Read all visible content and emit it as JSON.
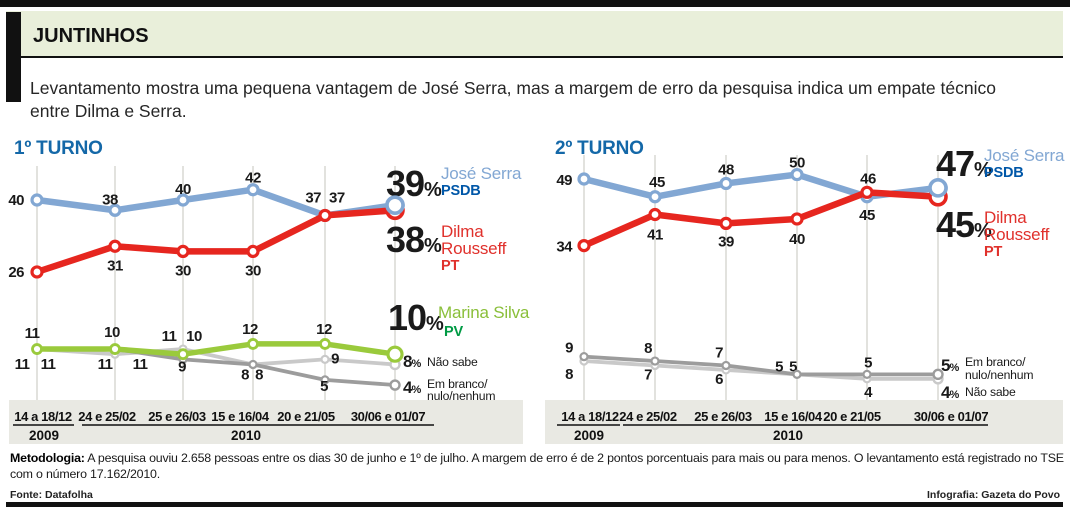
{
  "header": {
    "title": "JUNTINHOS",
    "subtitle": "Levantamento mostra uma pequena vantagem de José Serra, mas a margem de erro da pesquisa indica um empate técnico entre Dilma e Serra."
  },
  "footer": {
    "methodology_label": "Metodologia:",
    "methodology_text": "A pesquisa ouviu 2.658 pessoas entre os dias 30 de junho e 1º de julho. A margem de erro é de 2 pontos porcentuais para mais ou para menos. O levantamento está registrado no TSE com o número 17.162/2010.",
    "source": "Fonte: Datafolha",
    "credit": "Infografia: Gazeta do Povo"
  },
  "colors": {
    "header_bg": "#e9efda",
    "axis_band": "#e9e9e3",
    "title_blue": "#1468a8",
    "serra_line": "#82a7d3",
    "psdb_blue": "#0057a8",
    "dilma_line": "#e6261f",
    "dilma_text": "#e0312c",
    "marina_line": "#9aca3c",
    "marina_text": "#8abf3a",
    "pv_green": "#009a44",
    "gray_light": "#c9c9c9",
    "gray_dark": "#9c9c9c",
    "grid": "#d8d8d3",
    "label_dark": "#1a1a1a"
  },
  "chart_data": [
    {
      "type": "line",
      "title": "1º TURNO",
      "categories": [
        "14 a 18/12",
        "24 e 25/02",
        "25 e 26/03",
        "15 e 16/04",
        "20 e 21/05",
        "30/06 e 01/07"
      ],
      "years": [
        {
          "label": "2009",
          "cols": [
            0,
            0
          ]
        },
        {
          "label": "2010",
          "cols": [
            1,
            5
          ]
        }
      ],
      "ylim": [
        0,
        55
      ],
      "grid": "vertical",
      "legend_position": "right",
      "series": [
        {
          "name": "José Serra",
          "party": "PSDB",
          "values": [
            40,
            38,
            40,
            42,
            37,
            39
          ],
          "final": "39%"
        },
        {
          "name": "Dilma Rousseff",
          "party": "PT",
          "values": [
            26,
            31,
            30,
            30,
            37,
            38
          ],
          "final": "38%"
        },
        {
          "name": "Marina Silva",
          "party": "PV",
          "values": [
            11,
            11,
            10,
            12,
            12,
            10
          ],
          "final": "10%"
        },
        {
          "name": "Não sabe",
          "values": [
            11,
            10,
            11,
            8,
            9,
            8
          ],
          "final": "8%"
        },
        {
          "name": "Em branco/nulo/nenhum",
          "values": [
            11,
            11,
            9,
            8,
            5,
            4
          ],
          "final": "4%"
        }
      ]
    },
    {
      "type": "line",
      "title": "2º TURNO",
      "categories": [
        "14 a 18/12",
        "24 e 25/02",
        "25 e 26/03",
        "15 e 16/04",
        "20 e 21/05",
        "30/06 e 01/07"
      ],
      "years": [
        {
          "label": "2009",
          "cols": [
            0,
            0
          ]
        },
        {
          "label": "2010",
          "cols": [
            1,
            5
          ]
        }
      ],
      "ylim": [
        0,
        55
      ],
      "grid": "vertical",
      "legend_position": "right",
      "series": [
        {
          "name": "José Serra",
          "party": "PSDB",
          "values": [
            49,
            45,
            48,
            50,
            45,
            47
          ],
          "final": "47%"
        },
        {
          "name": "Dilma Rousseff",
          "party": "PT",
          "values": [
            34,
            41,
            39,
            40,
            46,
            45
          ],
          "final": "45%"
        },
        {
          "name": "Em branco/nulo/nenhum",
          "values": [
            9,
            8,
            7,
            5,
            5,
            5
          ],
          "final": "5%"
        },
        {
          "name": "Não sabe",
          "values": [
            8,
            7,
            6,
            5,
            4,
            4
          ],
          "final": "4%"
        }
      ]
    }
  ]
}
